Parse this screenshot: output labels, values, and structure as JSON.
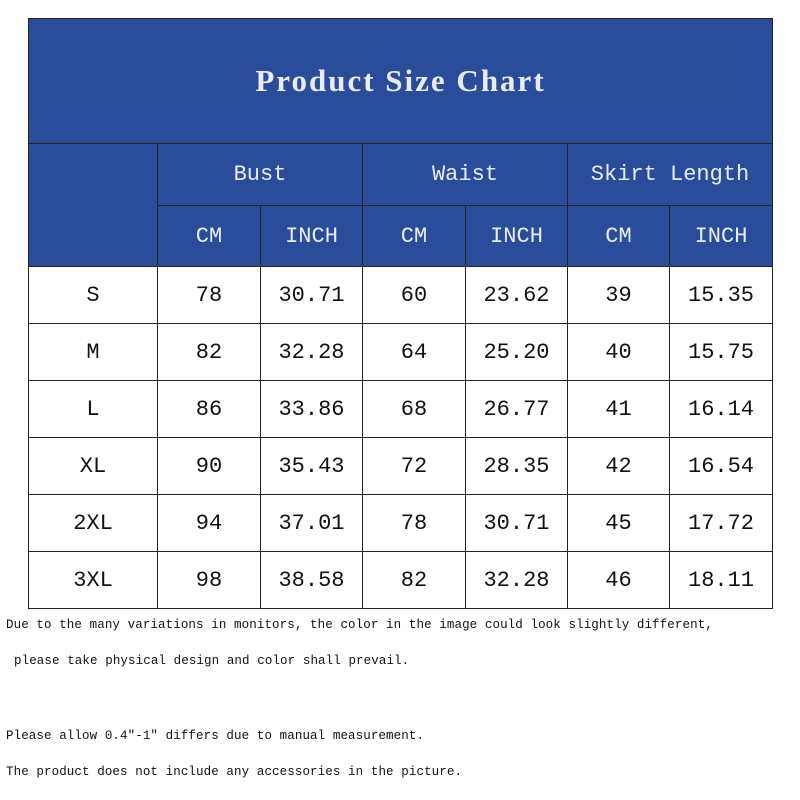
{
  "title": "Product Size Chart",
  "table": {
    "group_headers": [
      "Bust",
      "Waist",
      "Skirt Length"
    ],
    "unit_headers": [
      "CM",
      "INCH",
      "CM",
      "INCH",
      "CM",
      "INCH"
    ],
    "rows": [
      [
        "S",
        "78",
        "30.71",
        "60",
        "23.62",
        "39",
        "15.35"
      ],
      [
        "M",
        "82",
        "32.28",
        "64",
        "25.20",
        "40",
        "15.75"
      ],
      [
        "L",
        "86",
        "33.86",
        "68",
        "26.77",
        "41",
        "16.14"
      ],
      [
        "XL",
        "90",
        "35.43",
        "72",
        "28.35",
        "42",
        "16.54"
      ],
      [
        "2XL",
        "94",
        "37.01",
        "78",
        "30.71",
        "45",
        "17.72"
      ],
      [
        "3XL",
        "98",
        "38.58",
        "82",
        "32.28",
        "46",
        "18.11"
      ]
    ]
  },
  "notes": [
    "Due to the many variations in monitors, the color in the image could look slightly different,",
    "please take physical design and color shall prevail.",
    "Please allow 0.4\"-1\" differs due to manual measurement.",
    "The product does not include any accessories in the picture."
  ]
}
